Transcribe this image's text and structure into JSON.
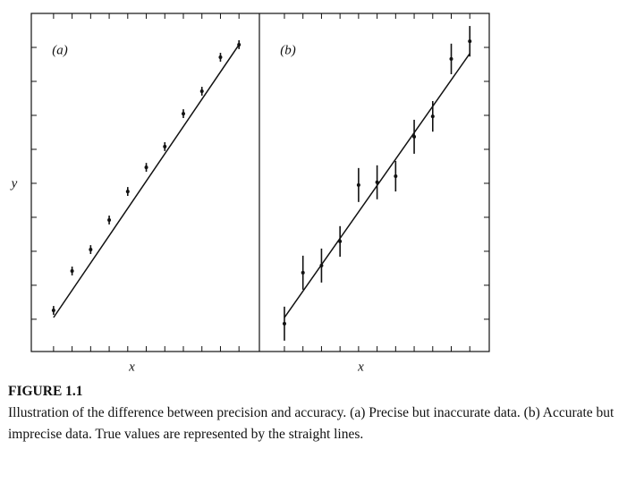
{
  "chart_data": [
    {
      "type": "scatter",
      "panel_label": "(a)",
      "y_label": "y",
      "x_label": "x",
      "x": [
        0,
        1,
        2,
        3,
        4,
        5,
        6,
        7,
        8,
        9,
        10
      ],
      "values": [
        0.26,
        1.42,
        2.05,
        2.92,
        3.76,
        4.47,
        5.08,
        6.05,
        6.71,
        7.71,
        8.08
      ],
      "errors": [
        0.13,
        0.13,
        0.13,
        0.13,
        0.13,
        0.13,
        0.13,
        0.13,
        0.13,
        0.13,
        0.13
      ],
      "fit": {
        "x": [
          0,
          10
        ],
        "y": [
          0.05,
          8.08
        ]
      },
      "xlim": [
        -1.2,
        11.1
      ],
      "ylim": [
        -0.95,
        9
      ],
      "xticks": [
        0,
        1,
        2,
        3,
        4,
        5,
        6,
        7,
        8,
        9,
        10
      ],
      "yticks": [
        0,
        1,
        2,
        3,
        4,
        5,
        6,
        7,
        8
      ],
      "ytick_side": "left",
      "color": "#111111"
    },
    {
      "type": "scatter",
      "panel_label": "(b)",
      "x_label": "x",
      "x": [
        0,
        1,
        2,
        3,
        4,
        5,
        6,
        7,
        8,
        9,
        10
      ],
      "values": [
        -0.13,
        1.37,
        1.58,
        2.29,
        3.95,
        4.03,
        4.21,
        5.37,
        5.97,
        7.66,
        8.18
      ],
      "errors": [
        0.5,
        0.5,
        0.5,
        0.45,
        0.5,
        0.5,
        0.45,
        0.5,
        0.45,
        0.45,
        0.45
      ],
      "fit": {
        "x": [
          0,
          10
        ],
        "y": [
          0.05,
          7.82
        ]
      },
      "xlim": [
        -1.35,
        11.05
      ],
      "ylim": [
        -0.95,
        9
      ],
      "xticks": [
        0,
        1,
        2,
        3,
        4,
        5,
        6,
        7,
        8,
        9,
        10
      ],
      "yticks": [
        0,
        1,
        2,
        3,
        4,
        5,
        6,
        7,
        8
      ],
      "ytick_side": "right",
      "color": "#111111"
    }
  ],
  "caption": {
    "label": "FIGURE 1.1",
    "text": "Illustration of the difference between precision and accuracy. (a) Precise but inaccurate data. (b) Accurate but imprecise data. True values are represented by the straight lines."
  }
}
